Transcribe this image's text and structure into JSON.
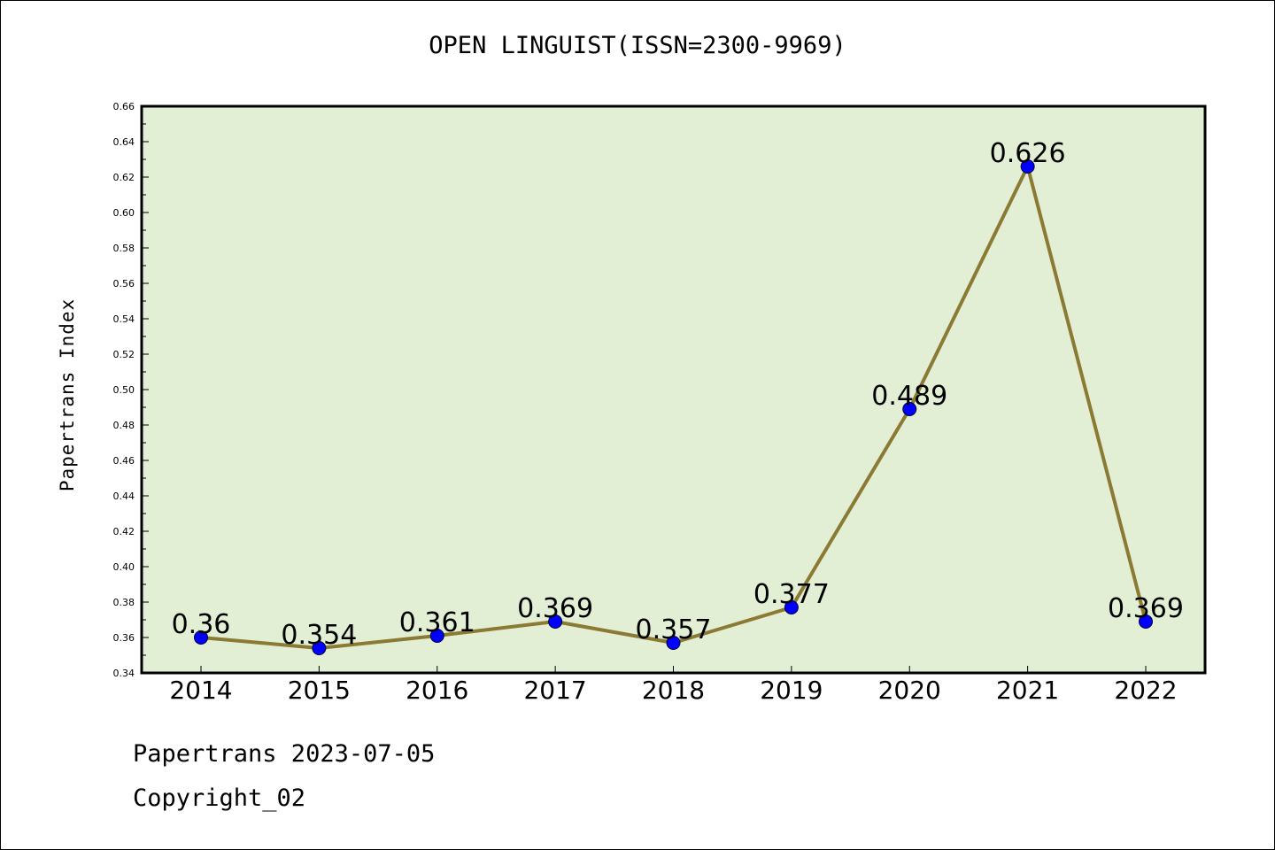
{
  "chart_data": {
    "type": "line",
    "title": "OPEN LINGUIST(ISSN=2300-9969)",
    "xlabel": "",
    "ylabel": "Papertrans Index",
    "categories": [
      "2014",
      "2015",
      "2016",
      "2017",
      "2018",
      "2019",
      "2020",
      "2021",
      "2022"
    ],
    "values": [
      0.36,
      0.354,
      0.361,
      0.369,
      0.357,
      0.377,
      0.489,
      0.626,
      0.369
    ],
    "value_labels": [
      "0.36",
      "0.354",
      "0.361",
      "0.369",
      "0.357",
      "0.377",
      "0.489",
      "0.626",
      "0.369"
    ],
    "ylim": [
      0.34,
      0.66
    ],
    "yticks": [
      "0.34",
      "0.36",
      "0.38",
      "0.40",
      "0.42",
      "0.44",
      "0.46",
      "0.48",
      "0.50",
      "0.52",
      "0.54",
      "0.56",
      "0.58",
      "0.60",
      "0.62",
      "0.64",
      "0.66"
    ],
    "grid": false,
    "colors": {
      "plot_background": "#e2efd5",
      "line": "#8a7a33",
      "marker": "#0000ff"
    }
  },
  "footer": {
    "date_line": "Papertrans 2023-07-05",
    "copyright": "Copyright_02"
  }
}
